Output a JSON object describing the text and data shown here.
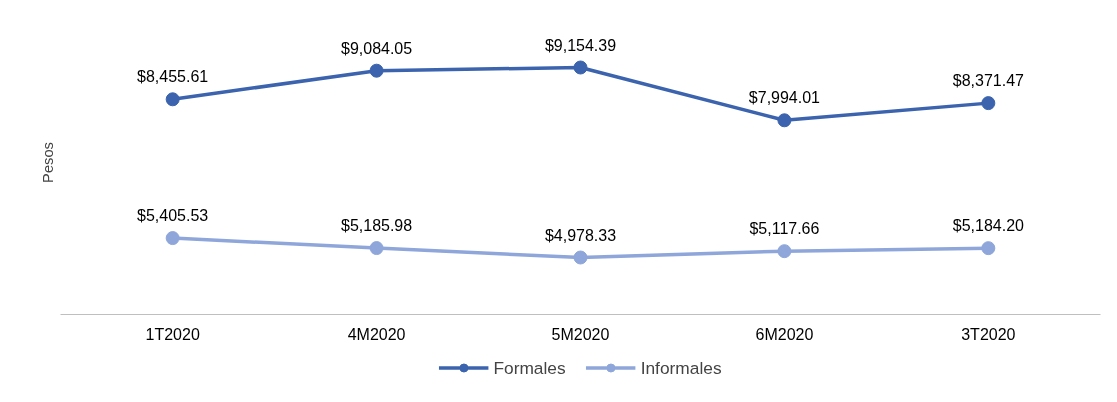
{
  "chart_data": {
    "type": "line",
    "ylabel": "Pesos",
    "categories": [
      "1T2020",
      "4M2020",
      "5M2020",
      "6M2020",
      "3T2020"
    ],
    "grid": false,
    "legend": "bottom",
    "marker": "circle",
    "line_style": "solid",
    "tick_labels": "x",
    "series": [
      {
        "name": "Formales",
        "color": "#3b63ae",
        "values": [
          8455.61,
          9084.05,
          9154.39,
          7994.01,
          8371.47
        ],
        "value_labels": [
          "$8,455.61",
          "$9,084.05",
          "$9,154.39",
          "$7,994.01",
          "$8,371.47"
        ]
      },
      {
        "name": "Informales",
        "color": "#8fa6da",
        "values": [
          5405.53,
          5185.98,
          4978.33,
          5117.66,
          5184.2
        ],
        "value_labels": [
          "$5,405.53",
          "$5,185.98",
          "$4,978.33",
          "$5,117.66",
          "$5,184.20"
        ]
      }
    ]
  }
}
